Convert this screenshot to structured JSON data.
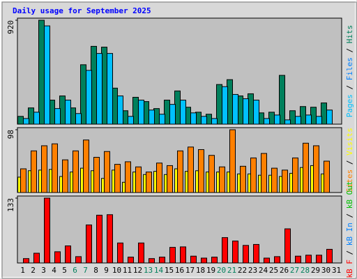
{
  "chart_data": [
    {
      "type": "bar",
      "title": "Daily usage for September 2025",
      "legend_separator": " / ",
      "categories": [
        "1",
        "2",
        "3",
        "4",
        "5",
        "6",
        "7",
        "8",
        "9",
        "10",
        "11",
        "12",
        "13",
        "14",
        "15",
        "16",
        "17",
        "18",
        "19",
        "20",
        "21",
        "22",
        "23",
        "24",
        "25",
        "26",
        "27",
        "28",
        "29",
        "30",
        "31"
      ],
      "category_colors": [
        "#000",
        "#000",
        "#000",
        "#000",
        "#000",
        "#00805c",
        "#00805c",
        "#000",
        "#000",
        "#000",
        "#000",
        "#000",
        "#00805c",
        "#00805c",
        "#000",
        "#000",
        "#000",
        "#000",
        "#000",
        "#00805c",
        "#00805c",
        "#000",
        "#000",
        "#000",
        "#000",
        "#000",
        "#00805c",
        "#00805c",
        "#000",
        "#000",
        "#000"
      ],
      "ylim": [
        0,
        920
      ],
      "yticks": [
        920
      ],
      "series": [
        {
          "name": "Pages",
          "color": "#00c0ff",
          "values": [
            50,
            106,
            870,
            138,
            213,
            94,
            476,
            626,
            626,
            250,
            69,
            213,
            125,
            88,
            175,
            213,
            100,
            69,
            50,
            332,
            263,
            225,
            213,
            50,
            81,
            38,
            69,
            81,
            69,
            125,
            0
          ]
        },
        {
          "name": "Files",
          "color": "#0080ff",
          "values": [
            null,
            null,
            null,
            null,
            null,
            null,
            null,
            null,
            null,
            null,
            null,
            null,
            null,
            null,
            null,
            null,
            null,
            null,
            null,
            null,
            null,
            null,
            null,
            null,
            null,
            null,
            null,
            null,
            null,
            null,
            null
          ]
        },
        {
          "name": "Hits",
          "color": "#00805c",
          "values": [
            69,
            144,
            920,
            213,
            250,
            144,
            526,
            689,
            682,
            319,
            119,
            238,
            200,
            138,
            213,
            294,
            150,
            106,
            88,
            351,
            394,
            250,
            269,
            100,
            106,
            432,
            119,
            156,
            150,
            188,
            0
          ]
        }
      ]
    },
    {
      "type": "bar",
      "legend_separator": " / ",
      "ylim": [
        0,
        98
      ],
      "yticks": [
        98
      ],
      "series": [
        {
          "name": "Sites",
          "color": "#ff8000",
          "values": [
            37,
            65,
            73,
            76,
            51,
            65,
            82,
            55,
            64,
            44,
            48,
            40,
            32,
            46,
            42,
            65,
            71,
            67,
            58,
            40,
            98,
            41,
            54,
            61,
            38,
            35,
            54,
            77,
            73,
            49,
            0
          ]
        },
        {
          "name": "Visits",
          "color": "#ffff00",
          "values": [
            24,
            34,
            35,
            36,
            25,
            32,
            38,
            34,
            22,
            35,
            16,
            32,
            28,
            33,
            28,
            37,
            33,
            34,
            32,
            32,
            32,
            29,
            29,
            27,
            27,
            25,
            30,
            39,
            42,
            29,
            0
          ]
        }
      ]
    },
    {
      "type": "bar",
      "legend_separator": " / ",
      "ylim": [
        0,
        133
      ],
      "yticks": [
        133
      ],
      "series": [
        {
          "name": "kB F",
          "color": "#ff0000",
          "values": [
            9,
            20,
            133,
            23,
            35,
            13,
            78,
            98,
            99,
            41,
            12,
            41,
            9,
            12,
            32,
            33,
            14,
            10,
            12,
            52,
            45,
            36,
            38,
            10,
            13,
            70,
            14,
            16,
            16,
            28,
            0
          ]
        },
        {
          "name": "kB In",
          "color": "#0080ff",
          "values": [
            null,
            null,
            null,
            null,
            null,
            null,
            null,
            null,
            null,
            null,
            null,
            null,
            null,
            null,
            null,
            null,
            null,
            null,
            null,
            null,
            null,
            null,
            null,
            null,
            null,
            null,
            null,
            null,
            null,
            null,
            null
          ]
        },
        {
          "name": "kB Out",
          "color": "#00c000",
          "values": [
            null,
            null,
            null,
            null,
            null,
            null,
            null,
            null,
            null,
            null,
            null,
            null,
            null,
            null,
            null,
            null,
            null,
            null,
            null,
            null,
            null,
            null,
            null,
            null,
            null,
            null,
            null,
            null,
            null,
            null,
            null
          ]
        }
      ]
    }
  ]
}
